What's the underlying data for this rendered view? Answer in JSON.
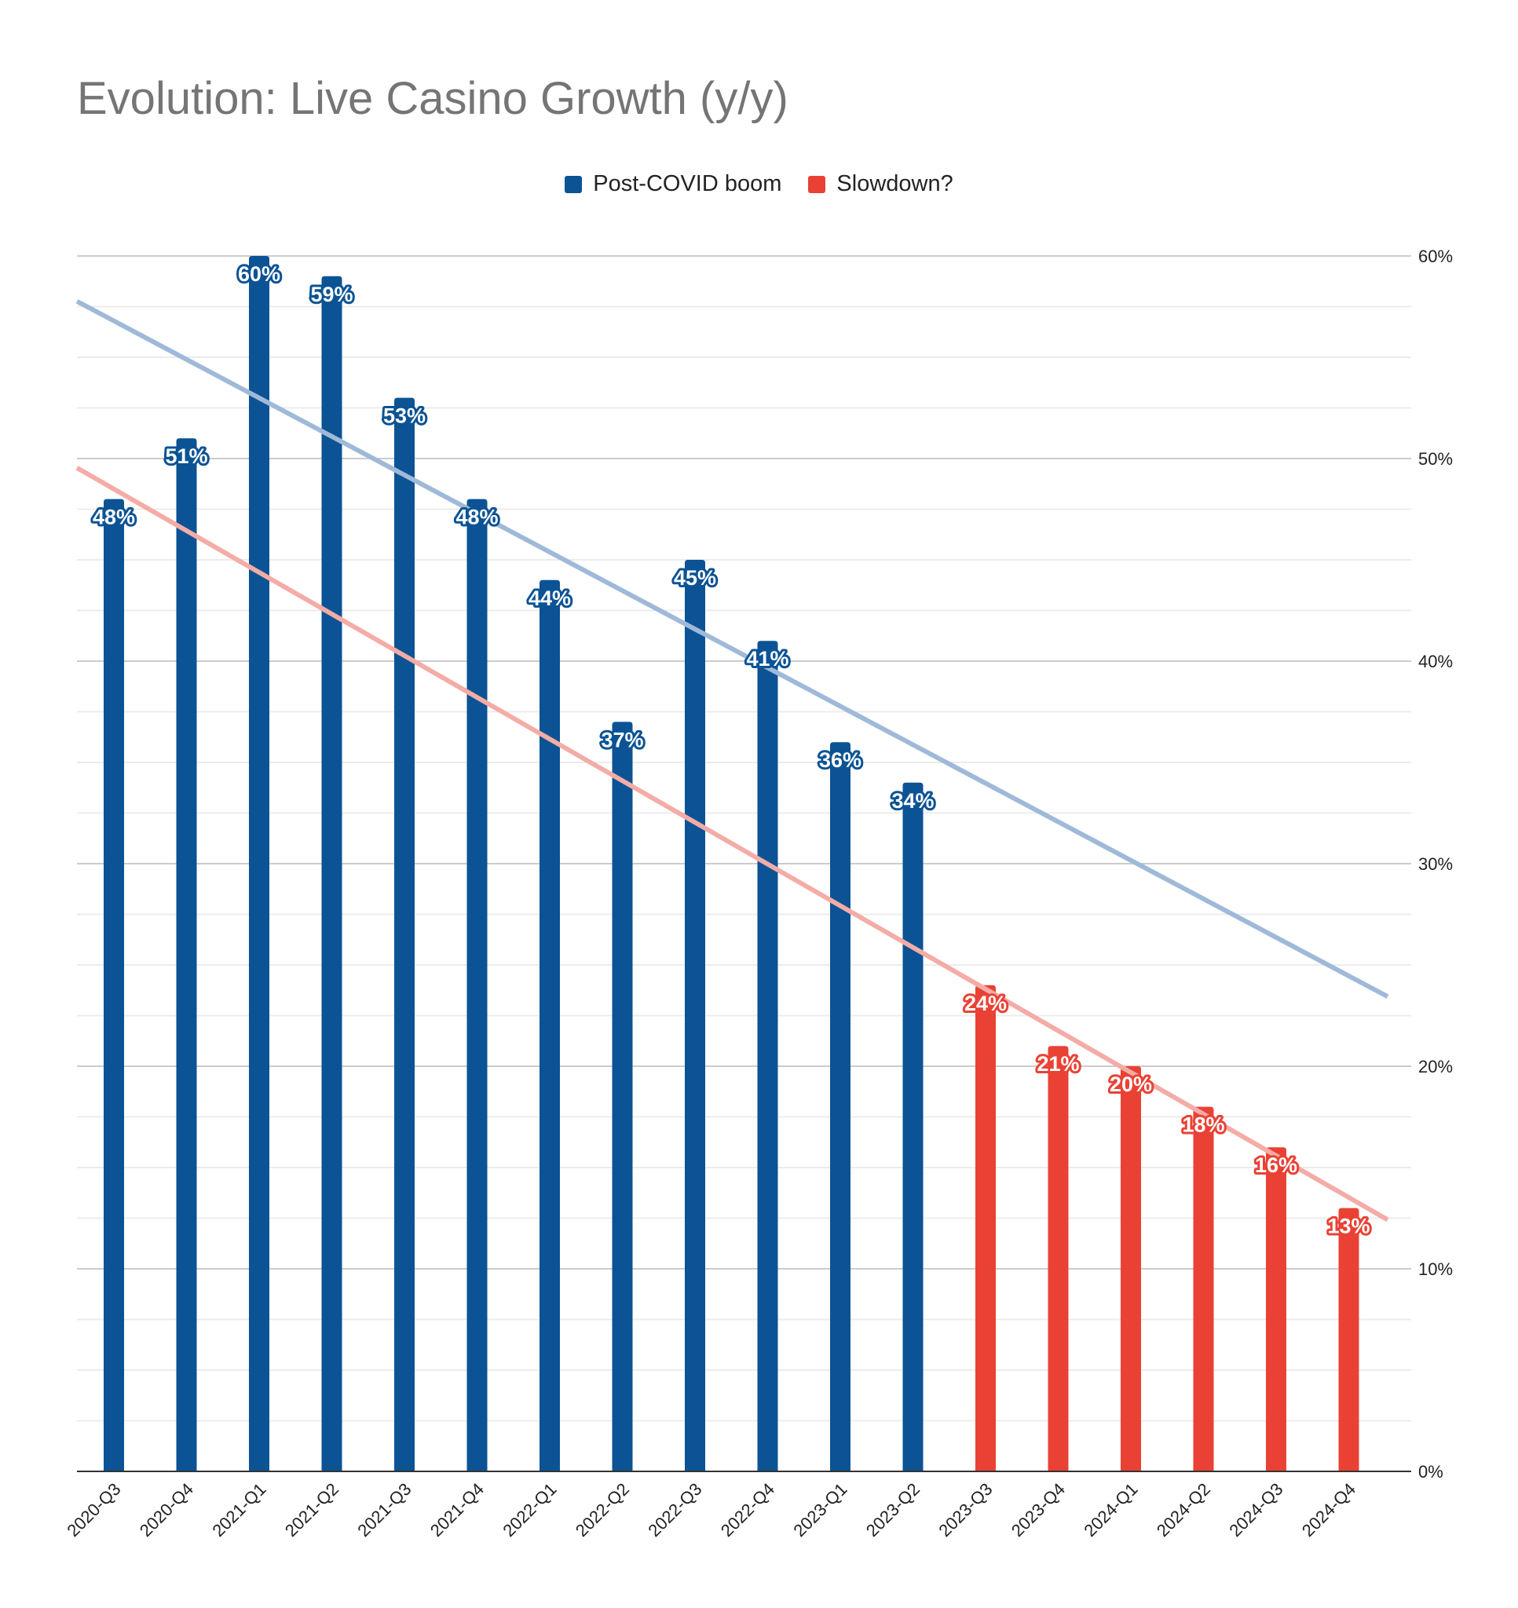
{
  "chart_data": {
    "type": "bar",
    "title": "Evolution: Live Casino Growth (y/y)",
    "categories": [
      "2020-Q3",
      "2020-Q4",
      "2021-Q1",
      "2021-Q2",
      "2021-Q3",
      "2021-Q4",
      "2022-Q1",
      "2022-Q2",
      "2022-Q3",
      "2022-Q4",
      "2023-Q1",
      "2023-Q2",
      "2023-Q3",
      "2023-Q4",
      "2024-Q1",
      "2024-Q2",
      "2024-Q3",
      "2024-Q4"
    ],
    "series": [
      {
        "name": "Post-COVID boom",
        "color": "#0b5394",
        "trendline_color": "#9fb9d8",
        "values": [
          48,
          51,
          60,
          59,
          53,
          48,
          44,
          37,
          45,
          41,
          36,
          34,
          null,
          null,
          null,
          null,
          null,
          null
        ],
        "labels": [
          "48%",
          "51%",
          "60%",
          "59%",
          "53%",
          "48%",
          "44%",
          "37%",
          "45%",
          "41%",
          "36%",
          "34%",
          "",
          "",
          "",
          "",
          "",
          ""
        ]
      },
      {
        "name": "Slowdown?",
        "color": "#e94235",
        "trendline_color": "#f4aca6",
        "values": [
          null,
          null,
          null,
          null,
          null,
          null,
          null,
          null,
          null,
          null,
          null,
          null,
          24,
          21,
          20,
          18,
          16,
          13
        ],
        "labels": [
          "",
          "",
          "",
          "",
          "",
          "",
          "",
          "",
          "",
          "",
          "",
          "",
          "24%",
          "21%",
          "20%",
          "18%",
          "16%",
          "13%"
        ]
      }
    ],
    "y_axis": {
      "position": "right",
      "ylim": [
        0,
        60
      ],
      "ticks": [
        0,
        10,
        20,
        30,
        40,
        50,
        60
      ],
      "tick_labels": [
        "0%",
        "10%",
        "20%",
        "30%",
        "40%",
        "50%",
        "60%"
      ],
      "minor_gridlines": true
    },
    "legend": {
      "placement": "top"
    },
    "grid": true
  }
}
